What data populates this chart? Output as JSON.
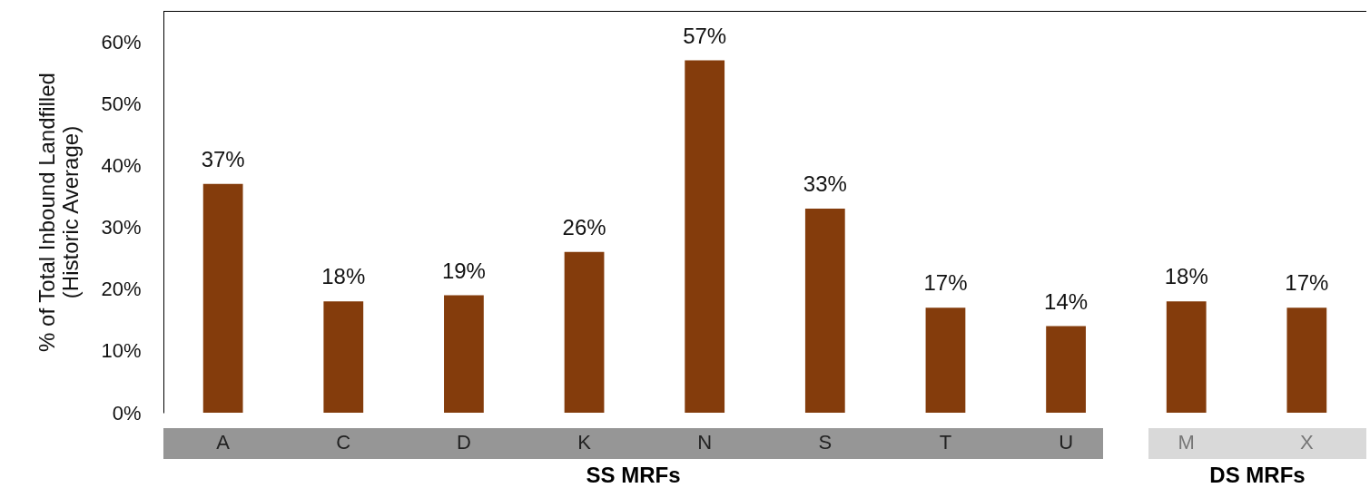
{
  "chart_data": {
    "type": "bar",
    "ylabel": "% of Total Inbound Landfilled\n(Historic Average)",
    "categories": [
      "A",
      "C",
      "D",
      "K",
      "N",
      "S",
      "T",
      "U",
      "M",
      "X"
    ],
    "values": [
      37,
      18,
      19,
      26,
      57,
      33,
      17,
      14,
      18,
      17
    ],
    "value_labels": [
      "37%",
      "18%",
      "19%",
      "26%",
      "57%",
      "33%",
      "17%",
      "14%",
      "18%",
      "17%"
    ],
    "color": "#843c0c",
    "ylim": [
      0,
      65
    ],
    "yticks": [
      {
        "value": 0,
        "label": "0%"
      },
      {
        "value": 10,
        "label": "10%"
      },
      {
        "value": 20,
        "label": "20%"
      },
      {
        "value": 30,
        "label": "30%"
      },
      {
        "value": 40,
        "label": "40%"
      },
      {
        "value": 50,
        "label": "50%"
      },
      {
        "value": 60,
        "label": "60%"
      }
    ],
    "annotations": [
      "SS MRFs",
      "DS MRFs"
    ],
    "grid": false
  }
}
